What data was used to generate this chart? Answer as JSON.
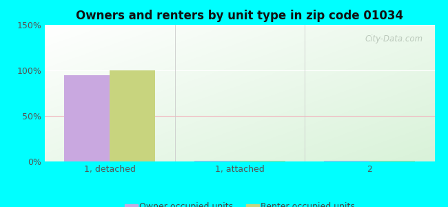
{
  "title": "Owners and renters by unit type in zip code 01034",
  "categories": [
    "1, detached",
    "1, attached",
    "2"
  ],
  "owner_values": [
    95,
    0.8,
    0.5
  ],
  "renter_values": [
    100,
    0.8,
    0.5
  ],
  "owner_color": "#c9a8e0",
  "renter_color": "#c8d47e",
  "ylim": [
    0,
    150
  ],
  "yticks": [
    0,
    50,
    100,
    150
  ],
  "ytick_labels": [
    "0%",
    "50%",
    "100%",
    "150%"
  ],
  "bar_width": 0.35,
  "legend_owner": "Owner occupied units",
  "legend_renter": "Renter occupied units",
  "outer_bg": "#00ffff",
  "watermark": "City-Data.com",
  "grid_color_strong": "#ffffff",
  "grid_color_mid": "#f8d0d8"
}
